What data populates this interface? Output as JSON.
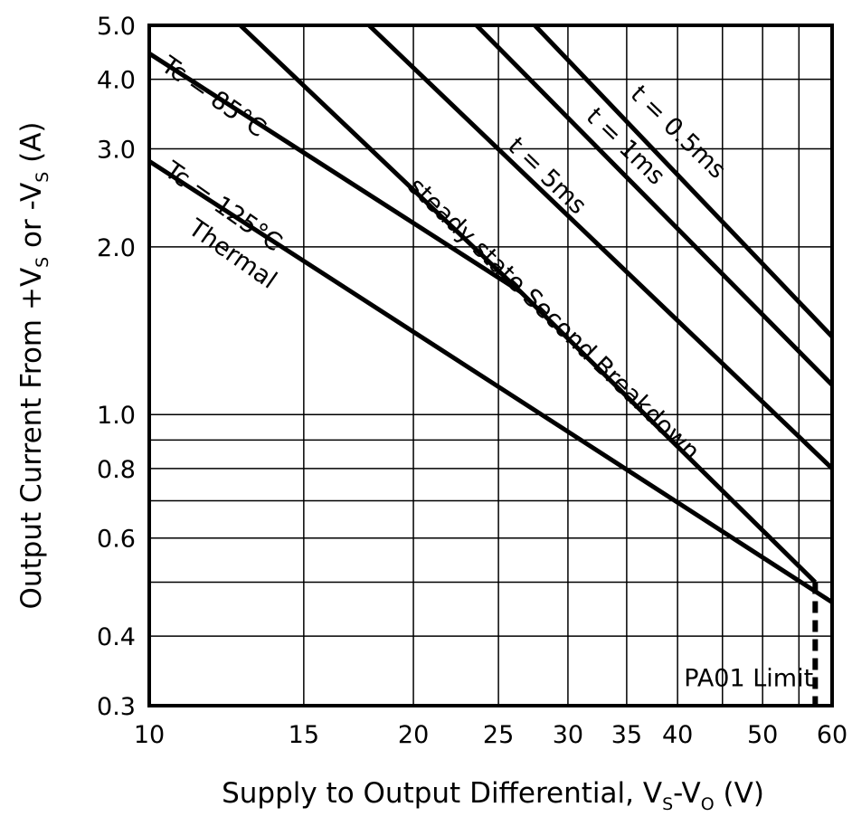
{
  "chart_data": {
    "type": "line",
    "x_scale": "log",
    "y_scale": "log",
    "xlim": [
      10,
      60
    ],
    "ylim": [
      0.3,
      5.0
    ],
    "grid": true,
    "xlabel": {
      "main": "Supply to Output Differential, V",
      "sub1": "S",
      "mid": "-V",
      "sub2": "O",
      "end": " (V)"
    },
    "ylabel": {
      "main": "Output Current From +V",
      "sub1": "S",
      "mid": " or -V",
      "sub2": "S",
      "end": " (A)"
    },
    "x_ticks": [
      {
        "value": 10,
        "label": "10"
      },
      {
        "value": 15,
        "label": "15"
      },
      {
        "value": 20,
        "label": "20"
      },
      {
        "value": 25,
        "label": "25"
      },
      {
        "value": 30,
        "label": "30"
      },
      {
        "value": 35,
        "label": "35"
      },
      {
        "value": 40,
        "label": "40"
      },
      {
        "value": 50,
        "label": "50"
      },
      {
        "value": 60,
        "label": "60"
      }
    ],
    "y_ticks": [
      {
        "value": 5.0,
        "label": "5.0"
      },
      {
        "value": 4.0,
        "label": "4.0"
      },
      {
        "value": 3.0,
        "label": "3.0"
      },
      {
        "value": 2.0,
        "label": "2.0"
      },
      {
        "value": 1.0,
        "label": "1.0"
      },
      {
        "value": 0.8,
        "label": "0.8"
      },
      {
        "value": 0.6,
        "label": "0.6"
      },
      {
        "value": 0.4,
        "label": "0.4"
      },
      {
        "value": 0.3,
        "label": "0.3"
      }
    ],
    "y_minor_grid": [
      0.9,
      0.7,
      0.5
    ],
    "x_minor_grid": [
      45,
      55
    ],
    "series": [
      {
        "name": "t = 0.5ms",
        "points": [
          [
            27.5,
            5.0
          ],
          [
            60,
            1.38
          ]
        ]
      },
      {
        "name": "t = 1ms",
        "points": [
          [
            23.6,
            5.0
          ],
          [
            60,
            1.13
          ]
        ]
      },
      {
        "name": "t = 5ms",
        "points": [
          [
            17.8,
            5.0
          ],
          [
            60,
            0.8
          ]
        ]
      },
      {
        "name": "steady state Second Breakdown",
        "points": [
          [
            12.7,
            5.0
          ],
          [
            26.5,
            1.66
          ],
          [
            57.4,
            0.5
          ]
        ]
      },
      {
        "name": "Tc = 85°C",
        "points": [
          [
            10,
            4.45
          ],
          [
            26.5,
            1.66
          ]
        ]
      },
      {
        "name": "Tc = 125°C Thermal",
        "points": [
          [
            10,
            2.85
          ],
          [
            60,
            0.46
          ]
        ]
      }
    ],
    "annotations": [
      {
        "text": "Tc = 85°C",
        "x": 11.7,
        "y": 3.62,
        "angle": 35
      },
      {
        "text": "Tc = 125°C",
        "x": 12.0,
        "y": 2.3,
        "angle": 35
      },
      {
        "text": "Thermal",
        "x": 12.3,
        "y": 1.89,
        "angle": 35
      },
      {
        "text": "steady state Second Breakdown",
        "x": 28.5,
        "y": 1.45,
        "angle": 44
      },
      {
        "text": "t = 5ms",
        "x": 28.0,
        "y": 2.62,
        "angle": 44
      },
      {
        "text": "t = 1ms",
        "x": 34.4,
        "y": 2.96,
        "angle": 44
      },
      {
        "text": "t = 0.5ms",
        "x": 39.5,
        "y": 3.14,
        "angle": 44
      },
      {
        "text": "PA01 Limit",
        "x": 48.2,
        "y": 0.325,
        "angle": 0
      }
    ],
    "limit_line": {
      "label": "PA01 Limit",
      "x": 57.4,
      "y_from": 0.3,
      "y_to": 0.5,
      "style": "dashed"
    }
  }
}
